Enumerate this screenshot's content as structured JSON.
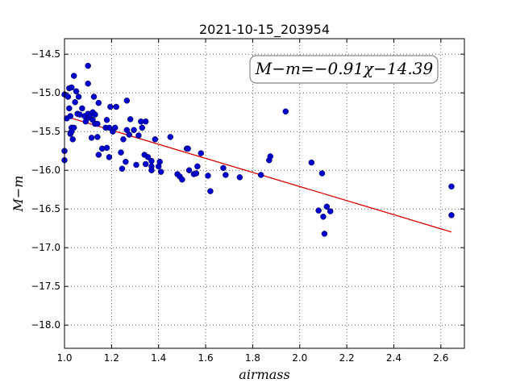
{
  "chart_data": {
    "type": "scatter",
    "title": "2021-10-15_203954",
    "xlabel": "airmass",
    "ylabel": "M−m",
    "xlim": [
      1.0,
      2.7
    ],
    "ylim": [
      -18.3,
      -14.3
    ],
    "y_inverted": true,
    "grid": true,
    "xticks": [
      1.0,
      1.2,
      1.4,
      1.6,
      1.8,
      2.0,
      2.2,
      2.4,
      2.6
    ],
    "xtick_labels": [
      "1.0",
      "1.2",
      "1.4",
      "1.6",
      "1.8",
      "2.0",
      "2.2",
      "2.4",
      "2.6"
    ],
    "yticks": [
      -14.5,
      -15.0,
      -15.5,
      -16.0,
      -16.5,
      -17.0,
      -17.5,
      -18.0
    ],
    "ytick_labels": [
      "−14.5",
      "−15.0",
      "−15.5",
      "−16.0",
      "−16.5",
      "−17.0",
      "−17.5",
      "−18.0"
    ],
    "annotation": "M−m=−0.91χ−14.39",
    "marker_color": "#0000cc",
    "fit_color": "#dd0000",
    "fit": {
      "slope": -0.91,
      "intercept": -14.39,
      "x_range": [
        1.0,
        2.645
      ]
    },
    "points": [
      [
        1.0,
        -15.02
      ],
      [
        1.0,
        -15.75
      ],
      [
        1.0,
        -15.87
      ],
      [
        1.01,
        -15.33
      ],
      [
        1.015,
        -15.05
      ],
      [
        1.02,
        -14.94
      ],
      [
        1.02,
        -15.2
      ],
      [
        1.025,
        -15.3
      ],
      [
        1.025,
        -15.53
      ],
      [
        1.03,
        -14.93
      ],
      [
        1.03,
        -15.45
      ],
      [
        1.03,
        -15.5
      ],
      [
        1.035,
        -15.6
      ],
      [
        1.04,
        -14.78
      ],
      [
        1.04,
        -15.45
      ],
      [
        1.045,
        -15.12
      ],
      [
        1.05,
        -14.98
      ],
      [
        1.055,
        -15.27
      ],
      [
        1.06,
        -15.05
      ],
      [
        1.065,
        -15.28
      ],
      [
        1.075,
        -15.2
      ],
      [
        1.085,
        -15.3
      ],
      [
        1.09,
        -15.37
      ],
      [
        1.1,
        -14.65
      ],
      [
        1.1,
        -14.88
      ],
      [
        1.1,
        -15.27
      ],
      [
        1.105,
        -15.32
      ],
      [
        1.11,
        -15.28
      ],
      [
        1.115,
        -15.58
      ],
      [
        1.12,
        -15.35
      ],
      [
        1.12,
        -15.25
      ],
      [
        1.125,
        -15.05
      ],
      [
        1.13,
        -15.28
      ],
      [
        1.13,
        -15.4
      ],
      [
        1.14,
        -15.4
      ],
      [
        1.14,
        -15.57
      ],
      [
        1.145,
        -15.8
      ],
      [
        1.145,
        -15.13
      ],
      [
        1.16,
        -15.72
      ],
      [
        1.175,
        -15.45
      ],
      [
        1.18,
        -15.35
      ],
      [
        1.18,
        -15.71
      ],
      [
        1.19,
        -15.45
      ],
      [
        1.19,
        -15.83
      ],
      [
        1.195,
        -15.18
      ],
      [
        1.205,
        -15.5
      ],
      [
        1.215,
        -15.45
      ],
      [
        1.22,
        -15.18
      ],
      [
        1.24,
        -15.77
      ],
      [
        1.245,
        -15.98
      ],
      [
        1.25,
        -15.6
      ],
      [
        1.26,
        -15.89
      ],
      [
        1.265,
        -15.48
      ],
      [
        1.265,
        -15.1
      ],
      [
        1.275,
        -15.54
      ],
      [
        1.28,
        -15.34
      ],
      [
        1.295,
        -15.48
      ],
      [
        1.305,
        -15.93
      ],
      [
        1.315,
        -15.55
      ],
      [
        1.325,
        -15.37
      ],
      [
        1.33,
        -15.45
      ],
      [
        1.34,
        -15.8
      ],
      [
        1.345,
        -15.92
      ],
      [
        1.345,
        -15.37
      ],
      [
        1.355,
        -15.83
      ],
      [
        1.37,
        -15.88
      ],
      [
        1.37,
        -15.95
      ],
      [
        1.37,
        -16.0
      ],
      [
        1.385,
        -15.6
      ],
      [
        1.4,
        -15.95
      ],
      [
        1.405,
        -15.89
      ],
      [
        1.41,
        -16.02
      ],
      [
        1.45,
        -15.57
      ],
      [
        1.48,
        -16.05
      ],
      [
        1.49,
        -16.08
      ],
      [
        1.5,
        -16.12
      ],
      [
        1.52,
        -15.72
      ],
      [
        1.525,
        -15.72
      ],
      [
        1.53,
        -16.0
      ],
      [
        1.55,
        -16.05
      ],
      [
        1.56,
        -16.04
      ],
      [
        1.565,
        -15.95
      ],
      [
        1.58,
        -15.78
      ],
      [
        1.61,
        -16.07
      ],
      [
        1.62,
        -16.27
      ],
      [
        1.675,
        -15.97
      ],
      [
        1.685,
        -16.06
      ],
      [
        1.745,
        -16.09
      ],
      [
        1.835,
        -16.06
      ],
      [
        1.87,
        -15.87
      ],
      [
        1.875,
        -15.82
      ],
      [
        1.94,
        -15.24
      ],
      [
        2.05,
        -15.9
      ],
      [
        2.08,
        -16.52
      ],
      [
        2.095,
        -16.04
      ],
      [
        2.1,
        -16.6
      ],
      [
        2.105,
        -16.82
      ],
      [
        2.115,
        -16.47
      ],
      [
        2.13,
        -16.53
      ],
      [
        2.645,
        -16.21
      ],
      [
        2.645,
        -16.58
      ]
    ]
  }
}
